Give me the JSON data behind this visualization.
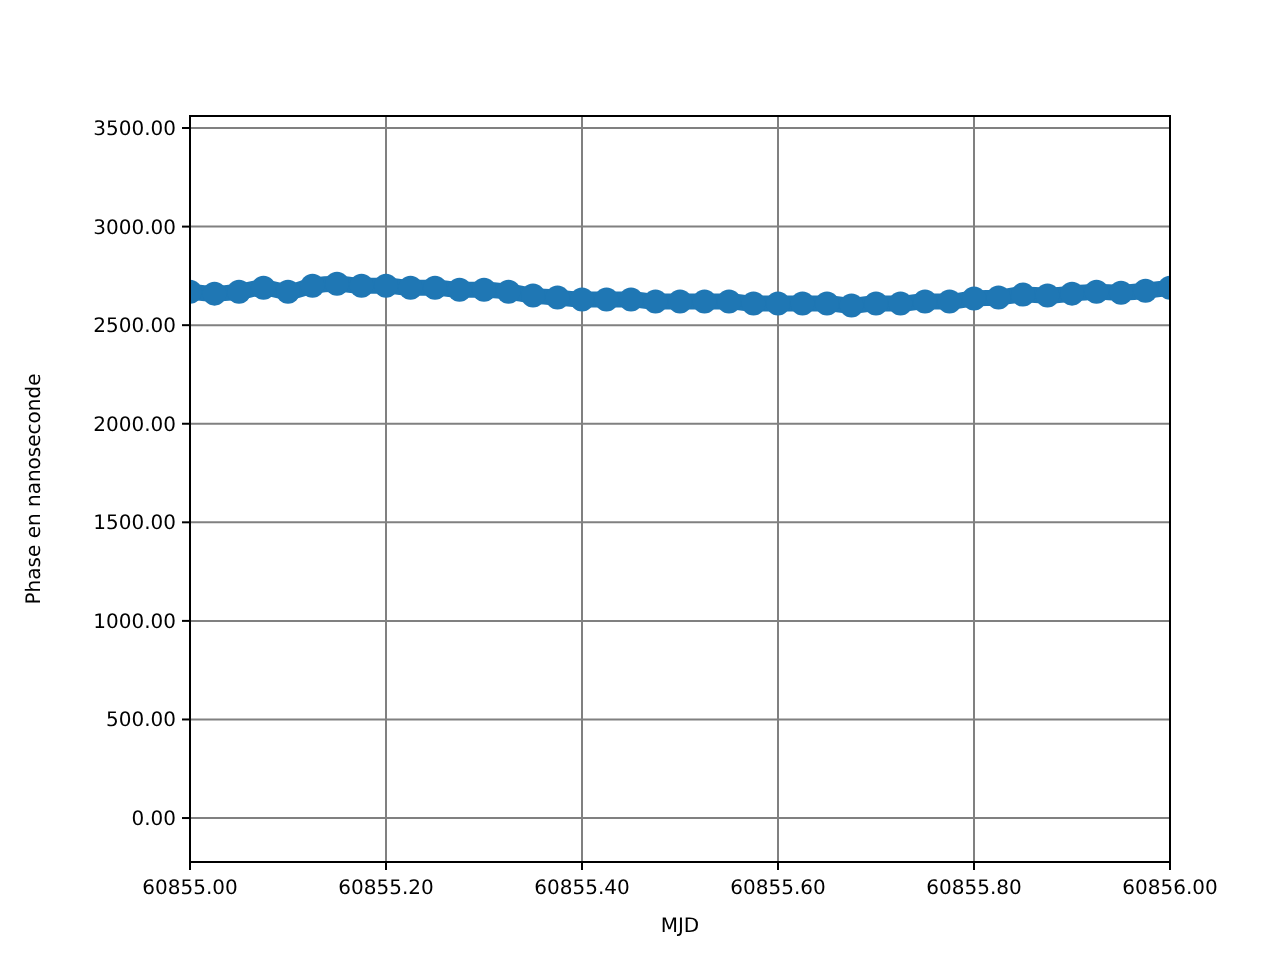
{
  "chart_data": {
    "type": "line",
    "xlabel": "MJD",
    "ylabel": "Phase en nanoseconde",
    "x": [
      60855.0,
      60855.025,
      60855.05,
      60855.075,
      60855.1,
      60855.125,
      60855.15,
      60855.175,
      60855.2,
      60855.225,
      60855.25,
      60855.275,
      60855.3,
      60855.325,
      60855.35,
      60855.375,
      60855.4,
      60855.425,
      60855.45,
      60855.475,
      60855.5,
      60855.525,
      60855.55,
      60855.575,
      60855.6,
      60855.625,
      60855.65,
      60855.675,
      60855.7,
      60855.725,
      60855.75,
      60855.775,
      60855.8,
      60855.825,
      60855.85,
      60855.875,
      60855.9,
      60855.925,
      60855.95,
      60855.975,
      60856.0
    ],
    "series": [
      {
        "color": "#1f77b4",
        "values": [
          2670,
          2660,
          2670,
          2690,
          2670,
          2700,
          2710,
          2700,
          2700,
          2690,
          2690,
          2680,
          2680,
          2670,
          2650,
          2640,
          2630,
          2630,
          2630,
          2620,
          2620,
          2620,
          2620,
          2610,
          2610,
          2610,
          2610,
          2600,
          2610,
          2610,
          2620,
          2620,
          2635,
          2640,
          2655,
          2650,
          2660,
          2670,
          2665,
          2675,
          2690
        ]
      }
    ],
    "xlim": [
      60855.0,
      60856.0
    ],
    "xticks": [
      {
        "value": 60855.0,
        "label": "60855.00"
      },
      {
        "value": 60855.2,
        "label": "60855.20"
      },
      {
        "value": 60855.4,
        "label": "60855.40"
      },
      {
        "value": 60855.6,
        "label": "60855.60"
      },
      {
        "value": 60855.8,
        "label": "60855.80"
      },
      {
        "value": 60856.0,
        "label": "60856.00"
      }
    ],
    "ylim": [
      -223,
      3561
    ],
    "yticks": [
      {
        "value": 0,
        "label": "0.00"
      },
      {
        "value": 500,
        "label": "500.00"
      },
      {
        "value": 1000,
        "label": "1000.00"
      },
      {
        "value": 1500,
        "label": "1500.00"
      },
      {
        "value": 2000,
        "label": "2000.00"
      },
      {
        "value": 2500,
        "label": "2500.00"
      },
      {
        "value": 3000,
        "label": "3000.00"
      },
      {
        "value": 3500,
        "label": "3500.00"
      }
    ],
    "grid": true,
    "marker": "circle"
  }
}
